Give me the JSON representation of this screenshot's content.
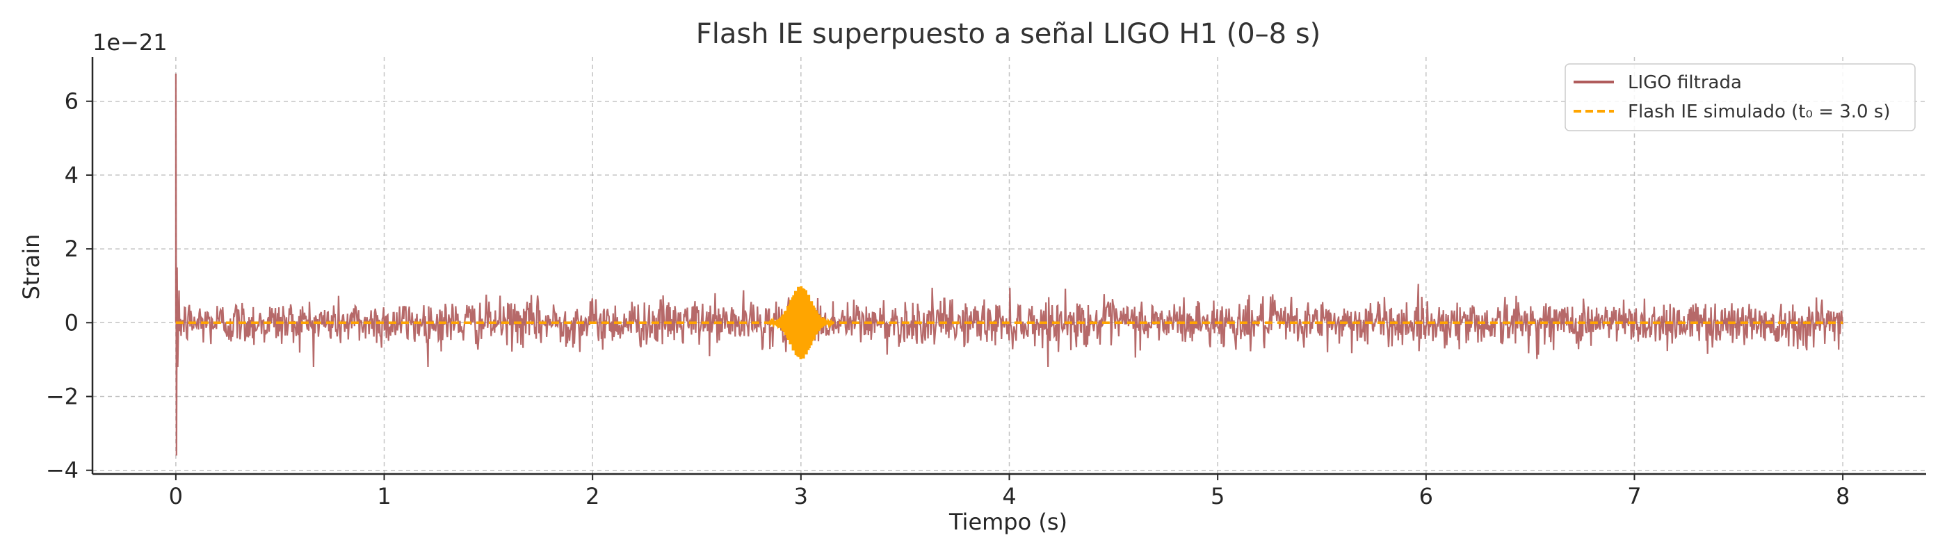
{
  "chart_data": {
    "type": "line",
    "title": "Flash IE superpuesto a señal LIGO H1 (0–8 s)",
    "xlabel": "Tiempo (s)",
    "ylabel": "Strain",
    "y_offset_label": "1e−21",
    "xlim": [
      -0.4,
      8.4
    ],
    "ylim": [
      -4.1,
      7.2
    ],
    "x_ticks": [
      0,
      1,
      2,
      3,
      4,
      5,
      6,
      7,
      8
    ],
    "x_tick_labels": [
      "0",
      "1",
      "2",
      "3",
      "4",
      "5",
      "6",
      "7",
      "8"
    ],
    "y_ticks": [
      -4,
      -2,
      0,
      2,
      4,
      6
    ],
    "y_tick_labels": [
      "−4",
      "−2",
      "0",
      "2",
      "4",
      "6"
    ],
    "grid": true,
    "legend_position": "top-right",
    "series": [
      {
        "name": "LIGO filtrada",
        "color": "#b05c5c",
        "style": "solid",
        "x_range": [
          0,
          8
        ],
        "noise_amplitude": 0.75,
        "noise_peak_envelope": 1.0,
        "initial_spike": {
          "x": 0.0,
          "y_max": 6.75,
          "y_min": -3.6
        }
      },
      {
        "name": "Flash IE simulado (t₀ = 3.0 s)",
        "color": "#ffa500",
        "style": "dashed",
        "x_range": [
          0,
          8
        ],
        "baseline": 0,
        "burst": {
          "center": 3.0,
          "amplitude": 1.0,
          "width": 0.05
        }
      }
    ]
  }
}
